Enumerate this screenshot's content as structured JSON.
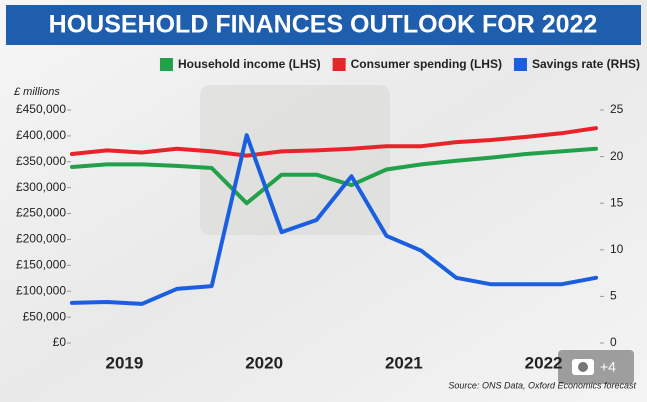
{
  "chart_data": {
    "type": "line",
    "title": "HOUSEHOLD FINANCES OUTLOOK FOR 2022",
    "unit_label": "£ millions",
    "source": "Source: ONS Data, Oxford Economics forecast",
    "categories": [
      null,
      "2019",
      null,
      null,
      null,
      "2020",
      null,
      null,
      null,
      "2021",
      null,
      null,
      null,
      "2022",
      null,
      null
    ],
    "series": [
      {
        "name": "Household income (LHS)",
        "color": "#22a04a",
        "axis": "y",
        "values": [
          340000,
          345000,
          345000,
          342000,
          338000,
          270000,
          325000,
          325000,
          305000,
          335000,
          345000,
          352000,
          358000,
          365000,
          370000,
          375000
        ]
      },
      {
        "name": "Consumer spending (LHS)",
        "color": "#e8232a",
        "axis": "y",
        "values": [
          365000,
          372000,
          368000,
          375000,
          370000,
          362000,
          370000,
          372000,
          375000,
          380000,
          380000,
          388000,
          392000,
          398000,
          405000,
          415000
        ]
      },
      {
        "name": "Savings rate (RHS)",
        "color": "#1a5fe0",
        "axis": "y2",
        "values": [
          4.3,
          4.4,
          4.2,
          5.8,
          6.1,
          22.3,
          11.9,
          13.2,
          17.9,
          11.5,
          9.9,
          7.0,
          6.3,
          6.3,
          6.3,
          7.0
        ]
      }
    ],
    "ylim": [
      0,
      450000
    ],
    "yticks": [
      {
        "value": 0,
        "label": "£0"
      },
      {
        "value": 50000,
        "label": "£50,000"
      },
      {
        "value": 100000,
        "label": "£100,000"
      },
      {
        "value": 150000,
        "label": "£150,000"
      },
      {
        "value": 200000,
        "label": "£200,000"
      },
      {
        "value": 250000,
        "label": "£250,000"
      },
      {
        "value": 300000,
        "label": "£300,000"
      },
      {
        "value": 350000,
        "label": "£350,000"
      },
      {
        "value": 400000,
        "label": "£400,000"
      },
      {
        "value": 450000,
        "label": "£450,000"
      }
    ],
    "y2lim": [
      0,
      25
    ],
    "y2ticks": [
      0,
      5,
      10,
      15,
      20,
      25
    ],
    "grid": false
  },
  "gallery": {
    "count": "+4"
  }
}
